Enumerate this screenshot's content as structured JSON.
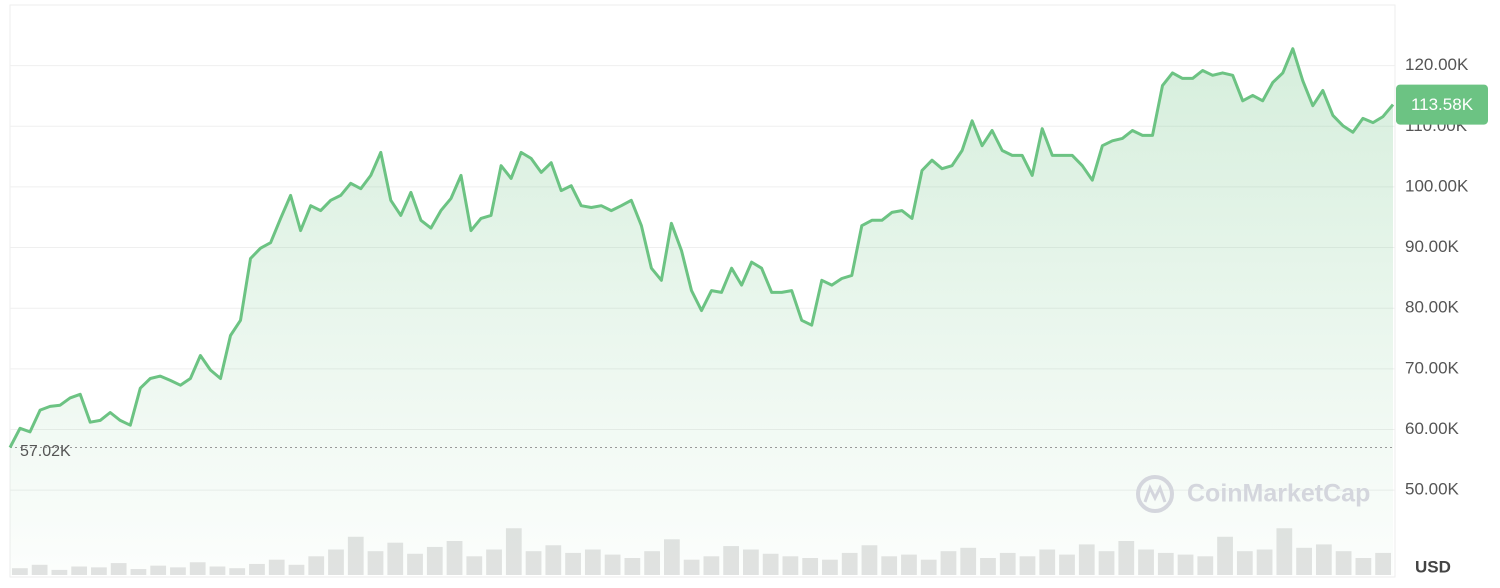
{
  "chart_data": {
    "type": "line",
    "color": "#6cc383",
    "values": [
      57020,
      60200,
      59600,
      63200,
      63800,
      64000,
      65200,
      65800,
      61200,
      61500,
      62800,
      61500,
      60700,
      66800,
      68400,
      68800,
      68100,
      67300,
      68400,
      72200,
      69800,
      68400,
      75500,
      78000,
      88200,
      89900,
      90800,
      94800,
      98600,
      92800,
      96900,
      96100,
      97800,
      98600,
      100600,
      99700,
      101900,
      105700,
      97800,
      95300,
      99100,
      94500,
      93200,
      96100,
      98100,
      101900,
      92800,
      94800,
      95300,
      103500,
      101400,
      105700,
      104700,
      102400,
      104000,
      99400,
      100200,
      96900,
      96600,
      96900,
      96100,
      96900,
      97800,
      93600,
      86600,
      84600,
      94000,
      89500,
      82900,
      79600,
      82900,
      82600,
      86600,
      83800,
      87600,
      86600,
      82600,
      82600,
      82900,
      78000,
      77200,
      84600,
      83800,
      84900,
      85400,
      93600,
      94500,
      94500,
      95800,
      96100,
      94800,
      102700,
      104400,
      103000,
      103500,
      106000,
      110900,
      106800,
      109300,
      106000,
      105200,
      105200,
      101900,
      109600,
      105200,
      105200,
      105200,
      103500,
      101100,
      106800,
      107600,
      108000,
      109300,
      108500,
      108500,
      116700,
      118800,
      117900,
      117900,
      119200,
      118400,
      118800,
      118400,
      114200,
      115100,
      114200,
      117200,
      118800,
      122800,
      117500,
      113400,
      115900,
      111800,
      110100,
      109000,
      111300,
      110600,
      111600,
      113580
    ],
    "volume_values": [
      8,
      12,
      6,
      10,
      9,
      14,
      7,
      11,
      9,
      15,
      10,
      8,
      13,
      18,
      12,
      22,
      30,
      45,
      28,
      38,
      25,
      33,
      40,
      22,
      30,
      55,
      28,
      35,
      26,
      30,
      24,
      20,
      28,
      42,
      18,
      22,
      34,
      30,
      25,
      22,
      20,
      18,
      26,
      35,
      22,
      24,
      18,
      28,
      32,
      20,
      26,
      22,
      30,
      24,
      36,
      28,
      40,
      30,
      26,
      24,
      22,
      45,
      28,
      30,
      55,
      32,
      36,
      28,
      20,
      26
    ],
    "volume_color": "#e3e3e3",
    "vlim": [
      0,
      100
    ],
    "ylim": [
      36000,
      130000
    ],
    "yticks": [
      {
        "value": 50000,
        "label": "50.00K"
      },
      {
        "value": 60000,
        "label": "60.00K"
      },
      {
        "value": 70000,
        "label": "70.00K"
      },
      {
        "value": 80000,
        "label": "80.00K"
      },
      {
        "value": 90000,
        "label": "90.00K"
      },
      {
        "value": 100000,
        "label": "100.00K"
      },
      {
        "value": 110000,
        "label": "110.00K"
      },
      {
        "value": 120000,
        "label": "120.00K"
      }
    ],
    "grid": true,
    "start_value": {
      "value": 57020,
      "label": "57.02K"
    },
    "last_value": {
      "value": 113580,
      "label": "113.58K"
    },
    "watermark": "CoinMarketCap",
    "currency": "USD"
  }
}
